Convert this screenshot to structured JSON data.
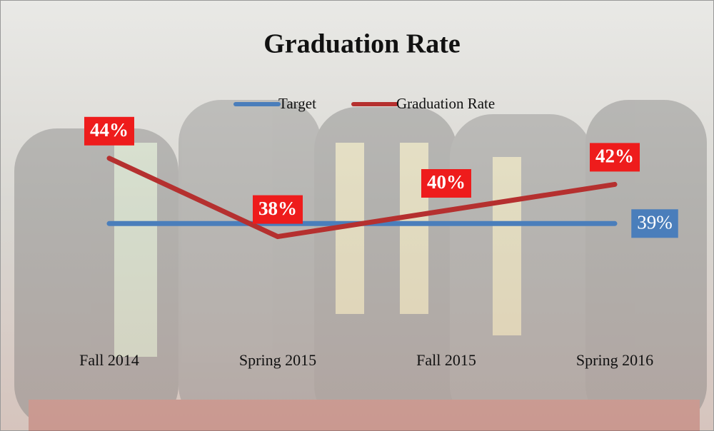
{
  "chart_data": {
    "type": "line",
    "title": "Graduation Rate",
    "categories": [
      "Fall 2014",
      "Spring 2015",
      "Fall 2015",
      "Spring 2016"
    ],
    "series": [
      {
        "name": "Target",
        "color": "#4a7ebb",
        "values": [
          39,
          39,
          39,
          39
        ],
        "value_labels": [
          null,
          null,
          null,
          "39%"
        ]
      },
      {
        "name": "Graduation Rate",
        "color": "#b5302f",
        "values": [
          44,
          38,
          40,
          42
        ],
        "value_labels": [
          "44%",
          "38%",
          "40%",
          "42%"
        ]
      }
    ],
    "ylim": [
      30,
      50
    ],
    "legend": "top"
  }
}
